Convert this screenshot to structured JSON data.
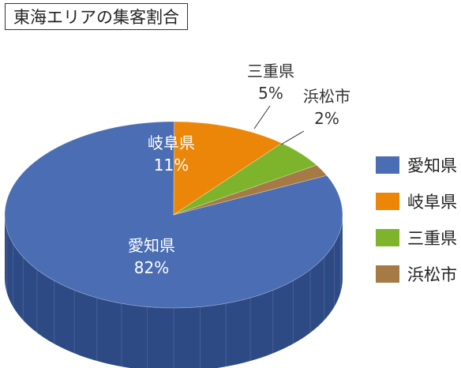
{
  "title": "東海エリアの集客割合",
  "chart_data": {
    "type": "pie",
    "categories": [
      "愛知県",
      "岐阜県",
      "三重県",
      "浜松市"
    ],
    "values": [
      82,
      11,
      5,
      2
    ],
    "labels": [
      "82%",
      "11%",
      "5%",
      "2%"
    ],
    "colors": [
      "#4a6db3",
      "#ec8608",
      "#7eb42c",
      "#a67a45"
    ],
    "side_colors": [
      "#2e4a85",
      "#b06205",
      "#5d8a1c",
      "#7a5730"
    ],
    "legend_position": "right",
    "title": "東海エリアの集客割合"
  }
}
